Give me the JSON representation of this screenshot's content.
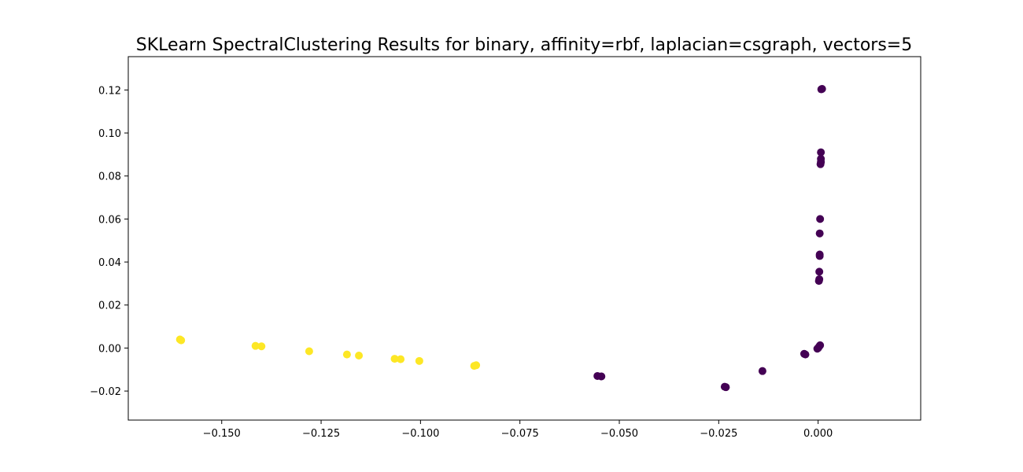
{
  "chart_data": {
    "type": "scatter",
    "title": "SKLearn SpectralClustering Results for binary, affinity=rbf, laplacian=csgraph, vectors=5",
    "xlabel": "",
    "ylabel": "",
    "xlim": [
      -0.1735,
      0.0258
    ],
    "ylim": [
      -0.0335,
      0.1355
    ],
    "grid": false,
    "x_ticks": [
      -0.15,
      -0.125,
      -0.1,
      -0.075,
      -0.05,
      -0.025,
      0.0
    ],
    "x_tick_labels": [
      "−0.150",
      "−0.125",
      "−0.100",
      "−0.075",
      "−0.050",
      "−0.025",
      "0.000"
    ],
    "y_ticks": [
      -0.02,
      0.0,
      0.02,
      0.04,
      0.06,
      0.08,
      0.1,
      0.12
    ],
    "y_tick_labels": [
      "−0.02",
      "0.00",
      "0.02",
      "0.04",
      "0.06",
      "0.08",
      "0.10",
      "0.12"
    ],
    "series": [
      {
        "color": "#440154",
        "points": [
          [
            0.001,
            0.1205
          ],
          [
            0.0008,
            0.1203
          ],
          [
            0.0007,
            0.091
          ],
          [
            0.0007,
            0.088
          ],
          [
            0.0007,
            0.0865
          ],
          [
            0.0006,
            0.0855
          ],
          [
            0.0005,
            0.06
          ],
          [
            0.0004,
            0.0533
          ],
          [
            0.0004,
            0.0435
          ],
          [
            0.0004,
            0.0428
          ],
          [
            0.0003,
            0.0355
          ],
          [
            0.0003,
            0.032
          ],
          [
            0.0002,
            0.0312
          ],
          [
            0.0005,
            0.0013
          ],
          [
            0.0003,
            0.0008
          ],
          [
            0.0,
            0.0
          ],
          [
            -0.0002,
            -0.0003
          ],
          [
            -0.0035,
            -0.0027
          ],
          [
            -0.0032,
            -0.003
          ],
          [
            -0.014,
            -0.0107
          ],
          [
            -0.0235,
            -0.018
          ],
          [
            -0.0232,
            -0.0182
          ],
          [
            -0.0545,
            -0.0132
          ],
          [
            -0.0555,
            -0.013
          ]
        ]
      },
      {
        "color": "#fde725",
        "points": [
          [
            -0.1605,
            0.004
          ],
          [
            -0.1602,
            0.0036
          ],
          [
            -0.1415,
            0.001
          ],
          [
            -0.14,
            0.0008
          ],
          [
            -0.128,
            -0.0015
          ],
          [
            -0.1185,
            -0.003
          ],
          [
            -0.1155,
            -0.0035
          ],
          [
            -0.1065,
            -0.005
          ],
          [
            -0.105,
            -0.0052
          ],
          [
            -0.1003,
            -0.006
          ],
          [
            -0.0865,
            -0.0083
          ],
          [
            -0.086,
            -0.008
          ]
        ]
      }
    ]
  }
}
